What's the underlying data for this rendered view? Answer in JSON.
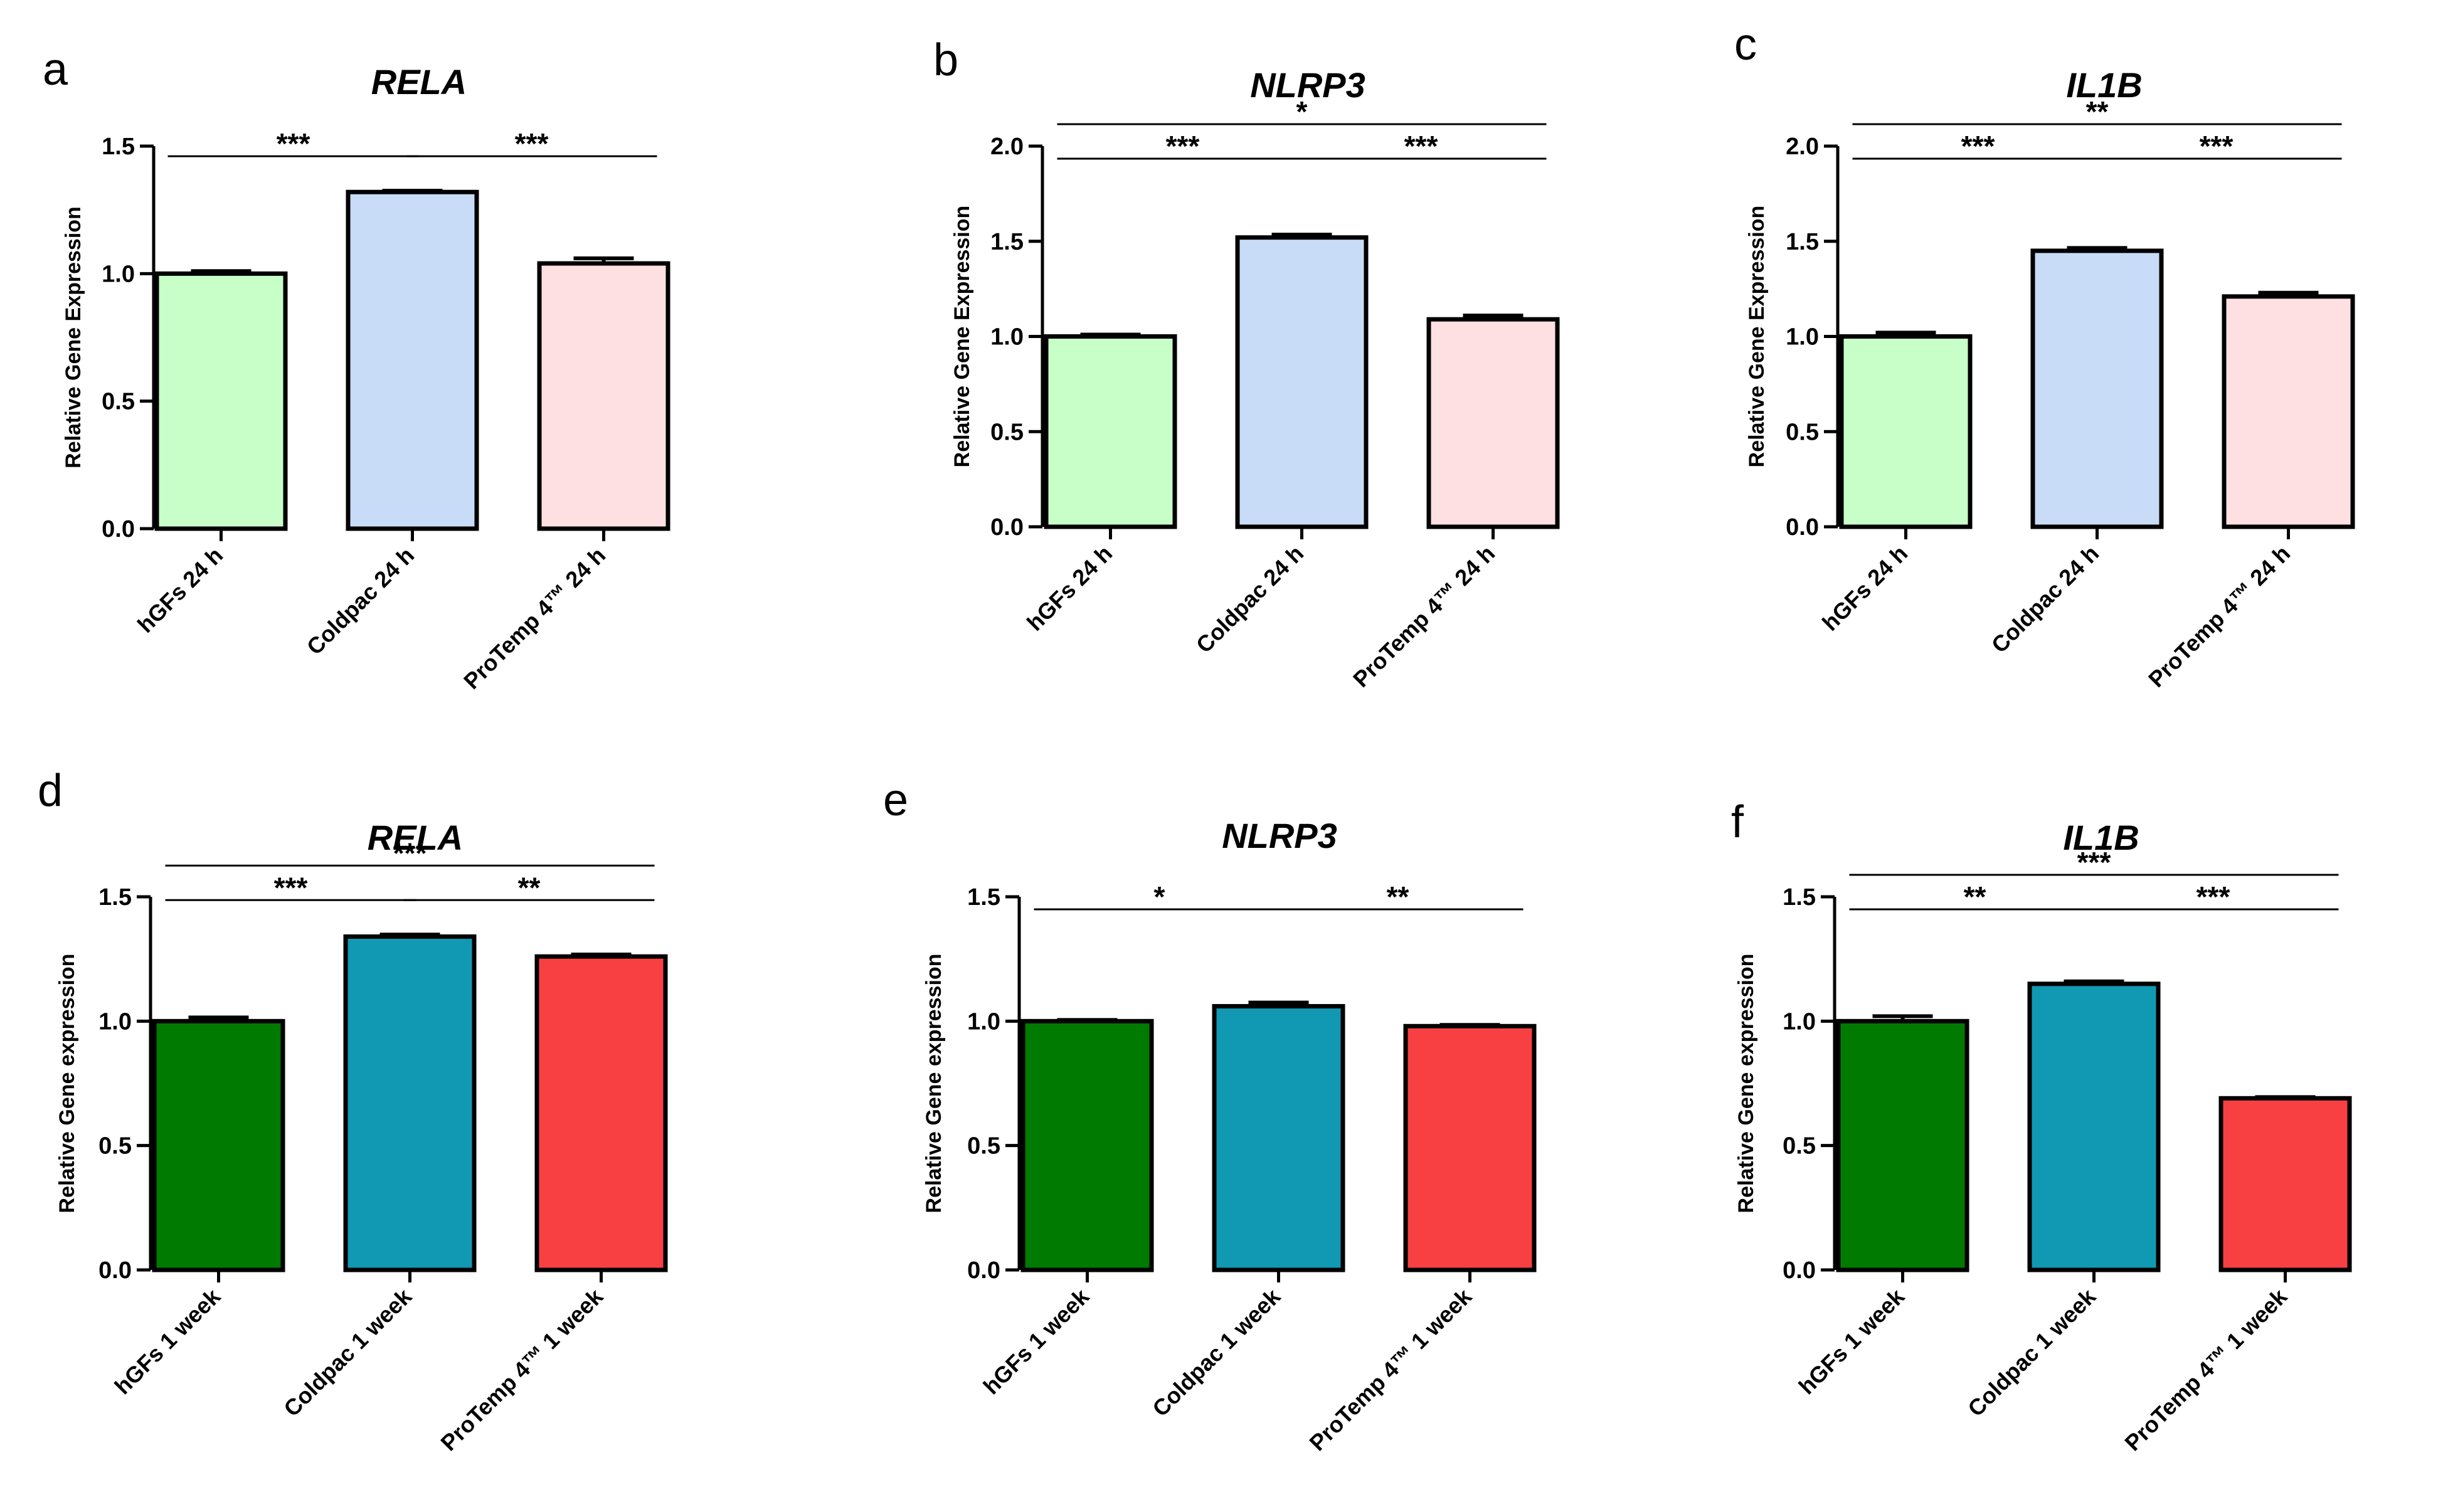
{
  "chart_data": [
    {
      "type": "bar",
      "panel": "a",
      "title": "RELA",
      "ylabel": "Relative Gene Expression",
      "ylim": [
        0,
        1.5
      ],
      "yticks": [
        "0.0",
        "0.5",
        "1.0",
        "1.5"
      ],
      "categories": [
        "hGFs 24 h",
        "Coldpac 24 h",
        "ProTemp 4™  24 h"
      ],
      "values": [
        1.0,
        1.32,
        1.04
      ],
      "errors": [
        0.01,
        0.005,
        0.02
      ],
      "colors": [
        "#c8ffc8",
        "#c8dcf7",
        "#ffe0e2"
      ],
      "significance": [
        {
          "from": 0,
          "to": 1,
          "label": "***",
          "level": 0
        },
        {
          "from": 1,
          "to": 2,
          "label": "***",
          "level": 0
        }
      ]
    },
    {
      "type": "bar",
      "panel": "b",
      "title": "NLRP3",
      "ylabel": "Relative Gene Expression",
      "ylim": [
        0,
        2.0
      ],
      "yticks": [
        "0.0",
        "0.5",
        "1.0",
        "1.5",
        "2.0"
      ],
      "categories": [
        "hGFs 24 h",
        "Coldpac 24 h",
        "ProTemp 4™  24 h"
      ],
      "values": [
        1.0,
        1.52,
        1.09
      ],
      "errors": [
        0.01,
        0.015,
        0.02
      ],
      "colors": [
        "#c8ffc8",
        "#c8dcf7",
        "#ffe0e2"
      ],
      "significance": [
        {
          "from": 0,
          "to": 1,
          "label": "***",
          "level": 0
        },
        {
          "from": 1,
          "to": 2,
          "label": "***",
          "level": 0
        },
        {
          "from": 0,
          "to": 2,
          "label": "*",
          "level": 1
        }
      ]
    },
    {
      "type": "bar",
      "panel": "c",
      "title": "IL1B",
      "ylabel": "Relative Gene Expression",
      "ylim": [
        0,
        2.0
      ],
      "yticks": [
        "0.0",
        "0.5",
        "1.0",
        "1.5",
        "2.0"
      ],
      "categories": [
        "hGFs 24 h",
        "Coldpac 24 h",
        "ProTemp 4™  24 h"
      ],
      "values": [
        1.0,
        1.45,
        1.21
      ],
      "errors": [
        0.02,
        0.015,
        0.02
      ],
      "colors": [
        "#c8ffc8",
        "#c8dcf7",
        "#ffe0e2"
      ],
      "significance": [
        {
          "from": 0,
          "to": 1,
          "label": "***",
          "level": 0
        },
        {
          "from": 1,
          "to": 2,
          "label": "***",
          "level": 0
        },
        {
          "from": 0,
          "to": 2,
          "label": "**",
          "level": 1
        }
      ]
    },
    {
      "type": "bar",
      "panel": "d",
      "title": "RELA",
      "ylabel": "Relative Gene expression",
      "ylim": [
        0,
        1.5
      ],
      "yticks": [
        "0.0",
        "0.5",
        "1.0",
        "1.5"
      ],
      "categories": [
        "hGFs 1 week",
        "Coldpac 1 week",
        "ProTemp 4™  1 week"
      ],
      "values": [
        1.0,
        1.34,
        1.26
      ],
      "errors": [
        0.015,
        0.008,
        0.008
      ],
      "colors": [
        "#007a00",
        "#1199b4",
        "#f84043"
      ],
      "significance": [
        {
          "from": 0,
          "to": 1,
          "label": "***",
          "level": 0
        },
        {
          "from": 1,
          "to": 2,
          "label": "**",
          "level": 0
        },
        {
          "from": 0,
          "to": 2,
          "label": "***",
          "level": 1
        }
      ]
    },
    {
      "type": "bar",
      "panel": "e",
      "title": "NLRP3",
      "ylabel": "Relative Gene expression",
      "ylim": [
        0,
        1.5
      ],
      "yticks": [
        "0.0",
        "0.5",
        "1.0",
        "1.5"
      ],
      "categories": [
        "hGFs 1 week",
        "Coldpac 1 week",
        "ProTemp 4™  1 week"
      ],
      "values": [
        1.0,
        1.06,
        0.98
      ],
      "errors": [
        0.005,
        0.015,
        0.005
      ],
      "colors": [
        "#007a00",
        "#1199b4",
        "#f84043"
      ],
      "significance": [
        {
          "from": 0,
          "to": 1,
          "label": "*",
          "level": 0
        },
        {
          "from": 1,
          "to": 2,
          "label": "**",
          "level": 0
        }
      ]
    },
    {
      "type": "bar",
      "panel": "f",
      "title": "IL1B",
      "ylabel": "Relative Gene expression",
      "ylim": [
        0,
        1.5
      ],
      "yticks": [
        "0.0",
        "0.5",
        "1.0",
        "1.5"
      ],
      "categories": [
        "hGFs 1 week",
        "Coldpac 1 week",
        "ProTemp 4™  1 week"
      ],
      "values": [
        1.0,
        1.15,
        0.69
      ],
      "errors": [
        0.02,
        0.01,
        0.005
      ],
      "colors": [
        "#007a00",
        "#1199b4",
        "#f84043"
      ],
      "significance": [
        {
          "from": 0,
          "to": 1,
          "label": "**",
          "level": 0
        },
        {
          "from": 1,
          "to": 2,
          "label": "***",
          "level": 0
        },
        {
          "from": 0,
          "to": 2,
          "label": "***",
          "level": 1
        }
      ]
    }
  ]
}
